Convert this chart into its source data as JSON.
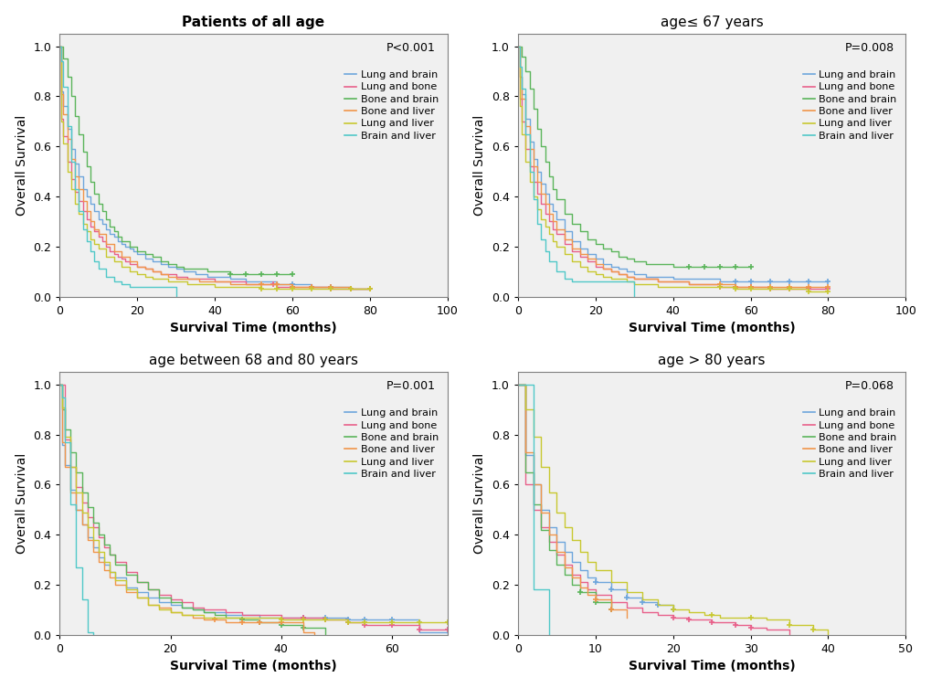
{
  "panels": [
    {
      "title": "Patients of all age",
      "title_bold": true,
      "pvalue": "P<0.001",
      "xlim": [
        0,
        100
      ],
      "xticks": [
        0,
        20,
        40,
        60,
        80,
        100
      ],
      "ylim": [
        0.0,
        1.05
      ]
    },
    {
      "title": "age≤ 67 years",
      "title_bold": false,
      "pvalue": "P=0.008",
      "xlim": [
        0,
        100
      ],
      "xticks": [
        0,
        20,
        40,
        60,
        80,
        100
      ],
      "ylim": [
        0.0,
        1.05
      ]
    },
    {
      "title": "age between 68 and 80 years",
      "title_bold": false,
      "pvalue": "P=0.001",
      "xlim": [
        0,
        70
      ],
      "xticks": [
        0,
        20,
        40,
        60
      ],
      "ylim": [
        0.0,
        1.05
      ]
    },
    {
      "title": "age > 80 years",
      "title_bold": false,
      "pvalue": "P=0.068",
      "xlim": [
        0,
        50
      ],
      "xticks": [
        0,
        10,
        20,
        30,
        40,
        50
      ],
      "ylim": [
        0.0,
        1.05
      ]
    }
  ],
  "colors": {
    "lung_brain": "#6EA6DC",
    "lung_bone": "#E8608A",
    "bone_brain": "#5BB55B",
    "bone_liver": "#F0954A",
    "lung_liver": "#C8C830",
    "brain_liver": "#50C8C8"
  },
  "legend_labels": [
    "Lung and brain",
    "Lung and bone",
    "Bone and brain",
    "Bone and liver",
    "Lung and liver",
    "Brain and liver"
  ],
  "xlabel": "Survival Time (months)",
  "ylabel": "Overall Survival",
  "bg_color": "#F0F0F0"
}
